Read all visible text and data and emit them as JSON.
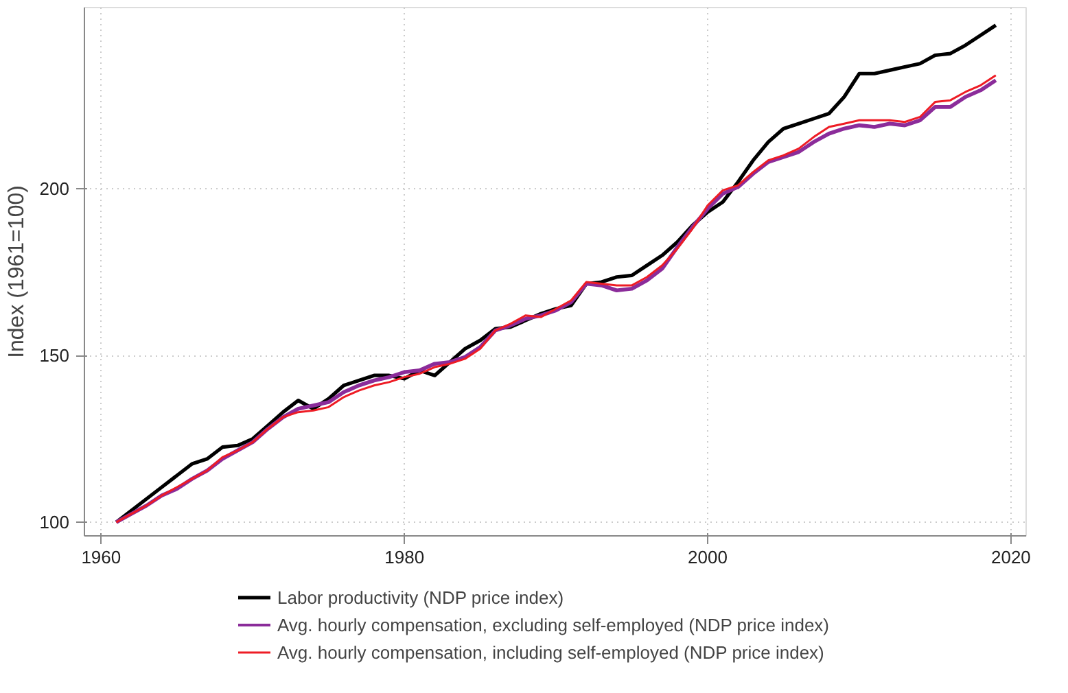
{
  "chart_data": {
    "type": "line",
    "ylabel": "Index (1961=100)",
    "xlim": [
      1958.9,
      2021
    ],
    "ylim": [
      95.9,
      254.3
    ],
    "xticks": [
      1960,
      1980,
      2000,
      2020
    ],
    "yticks": [
      100,
      150,
      200
    ],
    "grid": true,
    "legend": "bottom",
    "marker": "none",
    "line_style": "solid",
    "x": [
      1961,
      1962,
      1963,
      1964,
      1965,
      1966,
      1967,
      1968,
      1969,
      1970,
      1971,
      1972,
      1973,
      1974,
      1975,
      1976,
      1977,
      1978,
      1979,
      1980,
      1981,
      1982,
      1983,
      1984,
      1985,
      1986,
      1987,
      1988,
      1989,
      1990,
      1991,
      1992,
      1993,
      1994,
      1995,
      1996,
      1997,
      1998,
      1999,
      2000,
      2001,
      2002,
      2003,
      2004,
      2005,
      2006,
      2007,
      2008,
      2009,
      2010,
      2011,
      2012,
      2013,
      2014,
      2015,
      2016,
      2017,
      2018,
      2019
    ],
    "series": [
      {
        "name": "Labor productivity (NDP price index)",
        "color": "#000000",
        "values": [
          100,
          103.5,
          107,
          110.5,
          114,
          117.5,
          119,
          122.5,
          123,
          125,
          129,
          133,
          136.5,
          134,
          137,
          141,
          142.5,
          144,
          144,
          143,
          145.5,
          144,
          148,
          152,
          154.5,
          158,
          158.5,
          160.5,
          162.5,
          164,
          165,
          171.5,
          172,
          173.5,
          174,
          177,
          180,
          184,
          189,
          193,
          196,
          202,
          208.5,
          214,
          218,
          219.5,
          221,
          222.5,
          227.5,
          234.5,
          234.5,
          235.5,
          236.5,
          237.5,
          240,
          240.5,
          243,
          246,
          249
        ]
      },
      {
        "name": "Avg. hourly compensation, excluding self-employed (NDP price index)",
        "color": "#8b2c9a",
        "values": [
          100,
          102.5,
          105,
          108,
          110,
          113,
          115.5,
          119,
          121.5,
          124,
          128,
          131.5,
          134,
          135,
          136,
          139,
          141,
          142.5,
          143.5,
          145,
          145.5,
          147.5,
          148,
          149.5,
          152.5,
          157.5,
          159,
          161,
          162,
          163.5,
          166,
          171.5,
          171,
          169.5,
          170,
          172.5,
          176,
          182.5,
          188.5,
          194,
          198.5,
          200.5,
          204.5,
          208,
          209.5,
          211,
          214,
          216.5,
          218,
          219,
          218.5,
          219.5,
          219,
          220.5,
          224.5,
          224.5,
          227.5,
          229.5,
          232.5
        ]
      },
      {
        "name": "Avg. hourly compensation, including self-employed (NDP price index)",
        "color": "#ee1c25",
        "values": [
          100,
          102.5,
          105,
          108,
          110.5,
          113,
          115.5,
          119.5,
          121.5,
          124,
          128,
          131.5,
          133,
          133.5,
          134.5,
          137.5,
          139.5,
          141,
          142,
          143.5,
          144.5,
          146.5,
          147.5,
          149,
          152,
          157.5,
          159.5,
          162,
          161.5,
          164,
          166.5,
          172,
          171.5,
          171,
          171,
          173.5,
          177,
          182,
          188,
          195,
          199.5,
          201,
          205,
          208.5,
          210,
          212,
          215.5,
          218.5,
          219.5,
          220.5,
          220.5,
          220.5,
          220,
          221.5,
          226,
          226.5,
          229,
          231,
          234
        ]
      }
    ]
  }
}
